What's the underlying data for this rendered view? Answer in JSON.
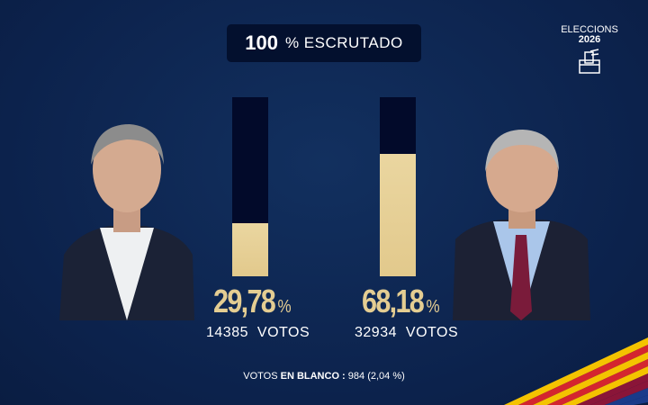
{
  "header": {
    "count": "100",
    "label": "% ESCRUTADO"
  },
  "logo": {
    "line1": "ELECCIONS",
    "line2": "2026",
    "icon": "ballot-box-icon"
  },
  "candidates": [
    {
      "percent": "29,78",
      "percent_value": 29.78,
      "percent_sign": "%",
      "votes": "14385",
      "votes_label": "VOTOS"
    },
    {
      "percent": "68,18",
      "percent_value": 68.18,
      "percent_sign": "%",
      "votes": "32934",
      "votes_label": "VOTOS"
    }
  ],
  "blank": {
    "label": "VOTOS",
    "label_bold": "EN BLANCO :",
    "value": "984 (2,04 %)"
  },
  "colors": {
    "background": "#0e2552",
    "bar_empty": "#020a2a",
    "bar_fill": "#e4cd92"
  }
}
